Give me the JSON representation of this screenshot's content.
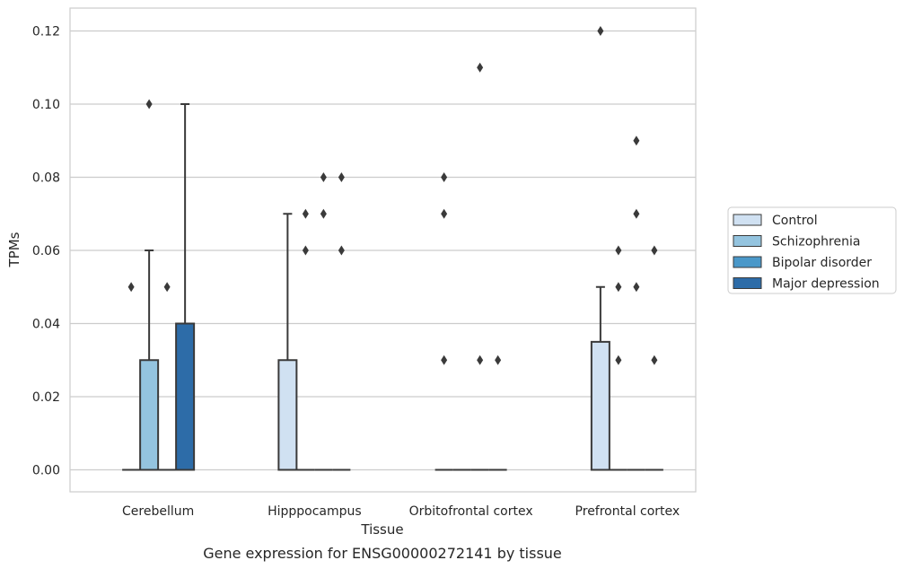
{
  "chart_data": {
    "type": "box",
    "title": "",
    "caption": "Gene expression for ENSG00000272141 by tissue",
    "xlabel": "Tissue",
    "ylabel": "TPMs",
    "ylim": [
      -0.006,
      0.126
    ],
    "yticks": [
      "0.00",
      "0.02",
      "0.04",
      "0.06",
      "0.08",
      "0.10",
      "0.12"
    ],
    "yticks_values": [
      0,
      0.02,
      0.04,
      0.06,
      0.08,
      0.1,
      0.12
    ],
    "grid": true,
    "legend_position": "right",
    "categories": [
      "Cerebellum",
      "Hipppocampus",
      "Orbitofrontal cortex",
      "Prefrontal cortex"
    ],
    "series": [
      {
        "name": "Control",
        "color": "#d0e1f2",
        "boxes": [
          {
            "q1": 0,
            "median": 0,
            "q3": 0,
            "whisker_low": 0,
            "whisker_high": 0,
            "outliers": [
              0.05
            ]
          },
          {
            "q1": 0,
            "median": 0,
            "q3": 0.03,
            "whisker_low": 0,
            "whisker_high": 0.07,
            "outliers": []
          },
          {
            "q1": 0,
            "median": 0,
            "q3": 0,
            "whisker_low": 0,
            "whisker_high": 0,
            "outliers": [
              0.08,
              0.07,
              0.03
            ]
          },
          {
            "q1": 0,
            "median": 0,
            "q3": 0.035,
            "whisker_low": 0,
            "whisker_high": 0.05,
            "outliers": [
              0.12
            ]
          }
        ]
      },
      {
        "name": "Schizophrenia",
        "color": "#94c4df",
        "boxes": [
          {
            "q1": 0,
            "median": 0,
            "q3": 0.03,
            "whisker_low": 0,
            "whisker_high": 0.06,
            "outliers": [
              0.1
            ]
          },
          {
            "q1": 0,
            "median": 0,
            "q3": 0,
            "whisker_low": 0,
            "whisker_high": 0,
            "outliers": [
              0.07,
              0.06
            ]
          },
          {
            "q1": 0,
            "median": 0,
            "q3": 0,
            "whisker_low": 0,
            "whisker_high": 0,
            "outliers": []
          },
          {
            "q1": 0,
            "median": 0,
            "q3": 0,
            "whisker_low": 0,
            "whisker_high": 0,
            "outliers": [
              0.06,
              0.05,
              0.03
            ]
          }
        ]
      },
      {
        "name": "Bipolar disorder",
        "color": "#4a98c9",
        "boxes": [
          {
            "q1": 0,
            "median": 0,
            "q3": 0,
            "whisker_low": 0,
            "whisker_high": 0,
            "outliers": [
              0.05
            ]
          },
          {
            "q1": 0,
            "median": 0,
            "q3": 0,
            "whisker_low": 0,
            "whisker_high": 0,
            "outliers": [
              0.08,
              0.07
            ]
          },
          {
            "q1": 0,
            "median": 0,
            "q3": 0,
            "whisker_low": 0,
            "whisker_high": 0,
            "outliers": [
              0.11,
              0.03
            ]
          },
          {
            "q1": 0,
            "median": 0,
            "q3": 0,
            "whisker_low": 0,
            "whisker_high": 0,
            "outliers": [
              0.09,
              0.07,
              0.05
            ]
          }
        ]
      },
      {
        "name": "Major depression",
        "color": "#2d6ca8",
        "boxes": [
          {
            "q1": 0,
            "median": 0,
            "q3": 0.04,
            "whisker_low": 0,
            "whisker_high": 0.1,
            "outliers": []
          },
          {
            "q1": 0,
            "median": 0,
            "q3": 0,
            "whisker_low": 0,
            "whisker_high": 0,
            "outliers": [
              0.08,
              0.06
            ]
          },
          {
            "q1": 0,
            "median": 0,
            "q3": 0,
            "whisker_low": 0,
            "whisker_high": 0,
            "outliers": [
              0.03
            ]
          },
          {
            "q1": 0,
            "median": 0,
            "q3": 0,
            "whisker_low": 0,
            "whisker_high": 0,
            "outliers": [
              0.06,
              0.03
            ]
          }
        ]
      }
    ]
  }
}
